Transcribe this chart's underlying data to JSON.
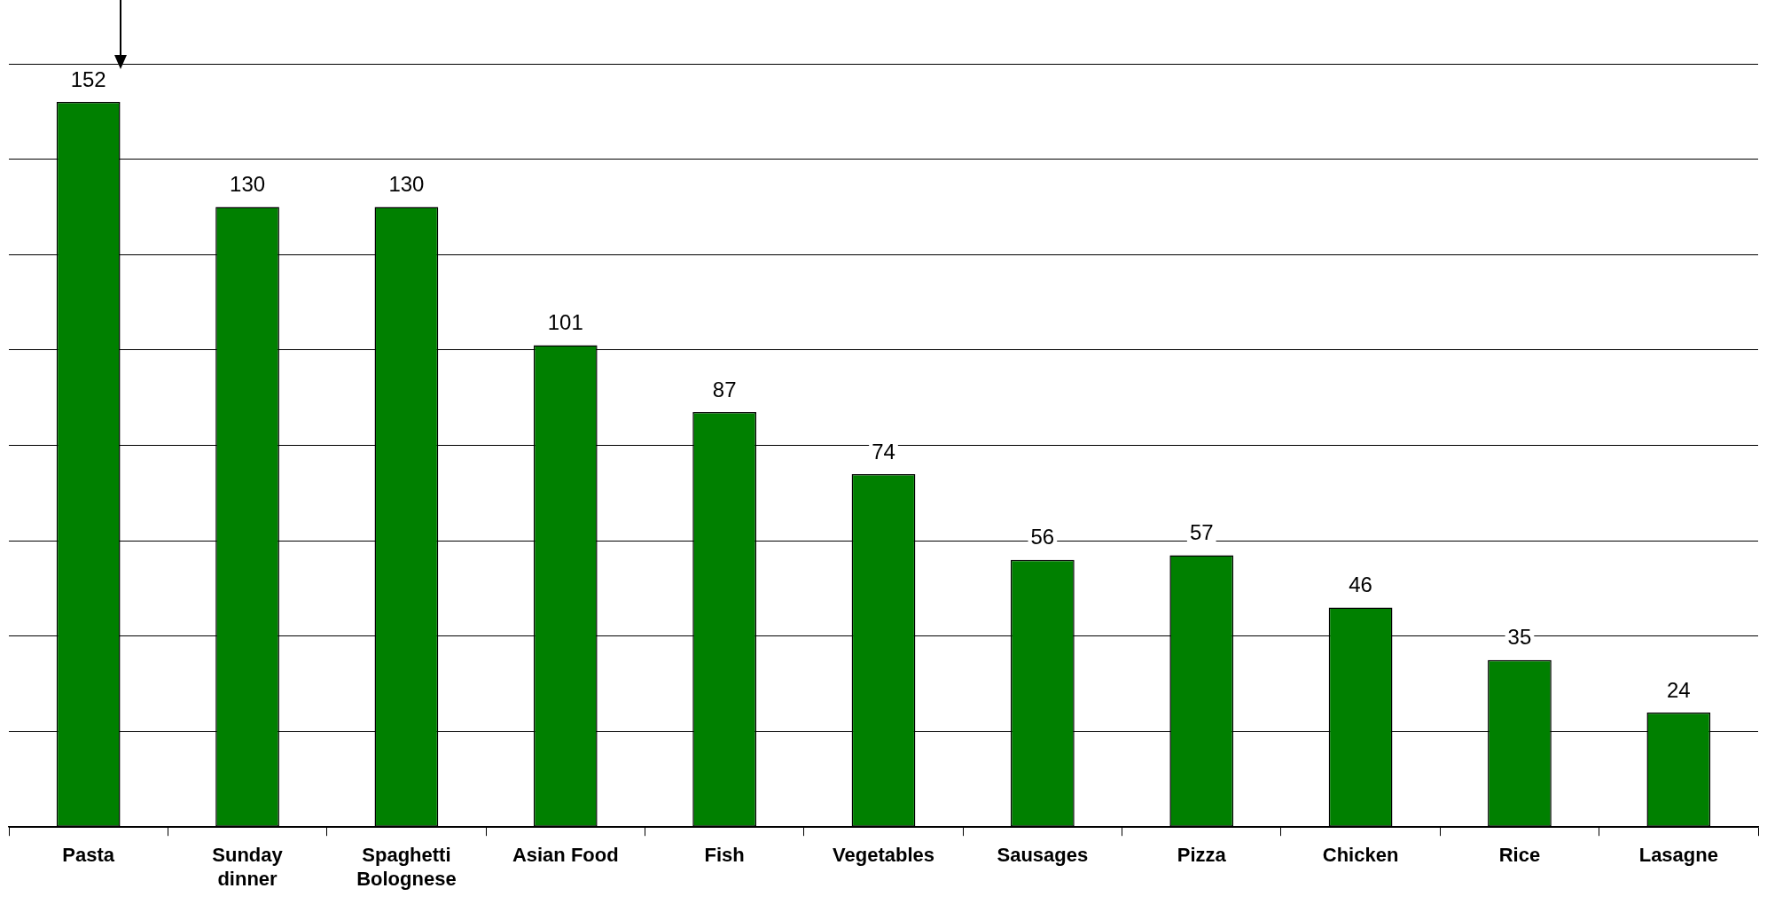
{
  "chart_data": {
    "type": "bar",
    "categories": [
      "Pasta",
      "Sunday dinner",
      "Spaghetti Bolognese",
      "Asian Food",
      "Fish",
      "Vegetables",
      "Sausages",
      "Pizza",
      "Chicken",
      "Rice",
      "Lasagne"
    ],
    "values": [
      152,
      130,
      130,
      101,
      87,
      74,
      56,
      57,
      46,
      35,
      24
    ],
    "color": "#008000",
    "ylim": [
      0,
      160
    ],
    "yticks": [
      {
        "value": 0,
        "label": null
      },
      {
        "value": 20,
        "label": null
      },
      {
        "value": 40,
        "label": null
      },
      {
        "value": 60,
        "label": null
      },
      {
        "value": 80,
        "label": null
      },
      {
        "value": 100,
        "label": null
      },
      {
        "value": 120,
        "label": null
      },
      {
        "value": 140,
        "label": null
      },
      {
        "value": 160,
        "label": null
      }
    ],
    "grid": "y",
    "data_labels": true,
    "tick_labels": "x"
  }
}
